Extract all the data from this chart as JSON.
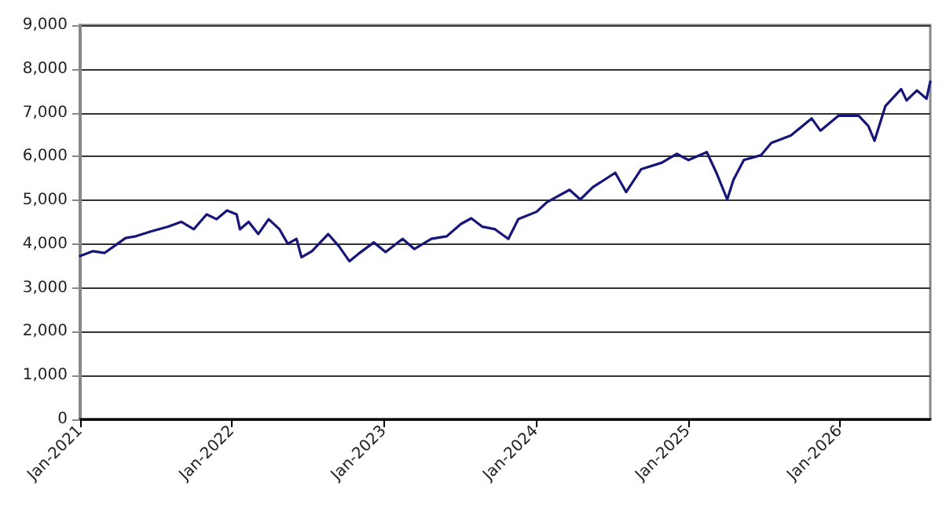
{
  "chart_data": {
    "type": "line",
    "color": "#15157a",
    "x": [
      "2021-01-01",
      "2021-02-01",
      "2021-03-01",
      "2021-04-01",
      "2021-04-20",
      "2021-05-15",
      "2021-06-20",
      "2021-08-01",
      "2021-09-01",
      "2021-10-01",
      "2021-11-01",
      "2021-11-25",
      "2021-12-20",
      "2022-01-12",
      "2022-01-20",
      "2022-02-10",
      "2022-03-05",
      "2022-03-30",
      "2022-04-25",
      "2022-05-15",
      "2022-06-05",
      "2022-06-17",
      "2022-07-12",
      "2022-08-20",
      "2022-09-15",
      "2022-10-10",
      "2022-11-01",
      "2022-12-08",
      "2023-01-05",
      "2023-02-15",
      "2023-03-15",
      "2023-04-25",
      "2023-06-01",
      "2023-07-05",
      "2023-07-30",
      "2023-08-25",
      "2023-09-25",
      "2023-10-27",
      "2023-11-20",
      "2024-01-03",
      "2024-01-28",
      "2024-03-22",
      "2024-04-17",
      "2024-05-17",
      "2024-07-10",
      "2024-08-05",
      "2024-09-10",
      "2024-10-30",
      "2024-12-05",
      "2025-01-02",
      "2025-02-15",
      "2025-03-10",
      "2025-04-05",
      "2025-04-20",
      "2025-05-15",
      "2025-06-25",
      "2025-07-20",
      "2025-09-05",
      "2025-10-25",
      "2025-11-15",
      "2025-12-28",
      "2026-02-15",
      "2026-03-10",
      "2026-03-25",
      "2026-04-20",
      "2026-05-28",
      "2026-06-10",
      "2026-07-05",
      "2026-07-28",
      "2026-08-06"
    ],
    "values": [
      3730,
      3840,
      3800,
      4010,
      4140,
      4180,
      4290,
      4400,
      4510,
      4340,
      4680,
      4570,
      4770,
      4680,
      4340,
      4510,
      4230,
      4570,
      4340,
      4010,
      4120,
      3700,
      3840,
      4230,
      3950,
      3610,
      3780,
      4040,
      3820,
      4120,
      3890,
      4120,
      4180,
      4460,
      4590,
      4400,
      4340,
      4120,
      4570,
      4740,
      4960,
      5240,
      5020,
      5300,
      5630,
      5190,
      5710,
      5860,
      6060,
      5920,
      6100,
      5630,
      5020,
      5470,
      5920,
      6030,
      6310,
      6480,
      6870,
      6590,
      6930,
      6930,
      6700,
      6360,
      7150,
      7540,
      7280,
      7510,
      7320,
      7710
    ],
    "xlim": [
      "2021-01-01",
      "2026-08-06"
    ],
    "xticks": [
      {
        "value": "2021-01-01",
        "label": "Jan-2021"
      },
      {
        "value": "2022-01-01",
        "label": "Jan-2022"
      },
      {
        "value": "2023-01-01",
        "label": "Jan-2023"
      },
      {
        "value": "2024-01-01",
        "label": "Jan-2024"
      },
      {
        "value": "2025-01-01",
        "label": "Jan-2025"
      },
      {
        "value": "2026-01-01",
        "label": "Jan-2026"
      }
    ],
    "ylim": [
      0,
      9000
    ],
    "yticks": [
      {
        "value": 0,
        "label": "0"
      },
      {
        "value": 1000,
        "label": "1,000"
      },
      {
        "value": 2000,
        "label": "2,000"
      },
      {
        "value": 3000,
        "label": "3,000"
      },
      {
        "value": 4000,
        "label": "4,000"
      },
      {
        "value": 5000,
        "label": "5,000"
      },
      {
        "value": 6000,
        "label": "6,000"
      },
      {
        "value": 7000,
        "label": "7,000"
      },
      {
        "value": 8000,
        "label": "8,000"
      },
      {
        "value": 9000,
        "label": "9,000"
      }
    ],
    "grid": "y",
    "marker": "none",
    "line_style": "solid"
  }
}
